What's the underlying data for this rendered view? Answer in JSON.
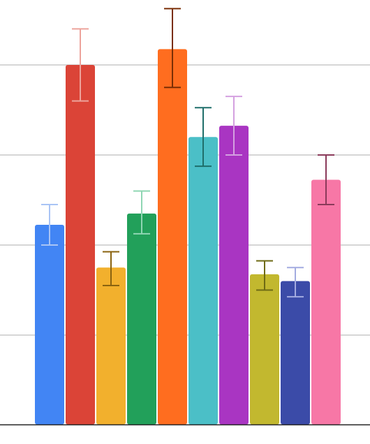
{
  "chart_data": {
    "type": "bar",
    "title": "",
    "xlabel": "",
    "ylabel": "",
    "ylim": [
      0,
      100
    ],
    "grid": true,
    "legend": "none",
    "gridlines": [
      20,
      40,
      60,
      80
    ],
    "bars": [
      {
        "value": 44.5,
        "err_low": 40.0,
        "err_high": 49.0,
        "color": "#4285f4",
        "err_color": "#a9c4f5"
      },
      {
        "value": 80.0,
        "err_low": 72.0,
        "err_high": 88.0,
        "color": "#db4437",
        "err_color": "#eda39b"
      },
      {
        "value": 35.0,
        "err_low": 31.0,
        "err_high": 38.5,
        "color": "#f2b02d",
        "err_color": "#8a6310"
      },
      {
        "value": 47.0,
        "err_low": 42.5,
        "err_high": 52.0,
        "color": "#22a05a",
        "err_color": "#8fd6b3"
      },
      {
        "value": 83.5,
        "err_low": 75.0,
        "err_high": 92.5,
        "color": "#ff6d1f",
        "err_color": "#7a2e05"
      },
      {
        "value": 64.0,
        "err_low": 57.5,
        "err_high": 70.5,
        "color": "#4bbfc7",
        "err_color": "#1f6e6a"
      },
      {
        "value": 66.5,
        "err_low": 60.0,
        "err_high": 73.0,
        "color": "#a935c2",
        "err_color": "#d4a0e0"
      },
      {
        "value": 33.5,
        "err_low": 30.0,
        "err_high": 36.5,
        "color": "#c2b82f",
        "err_color": "#6e6a14"
      },
      {
        "value": 32.0,
        "err_low": 28.5,
        "err_high": 35.0,
        "color": "#3b4ba8",
        "err_color": "#a3abe0"
      },
      {
        "value": 54.5,
        "err_low": 49.0,
        "err_high": 60.0,
        "color": "#f777a6",
        "err_color": "#8a3a5a"
      }
    ]
  }
}
